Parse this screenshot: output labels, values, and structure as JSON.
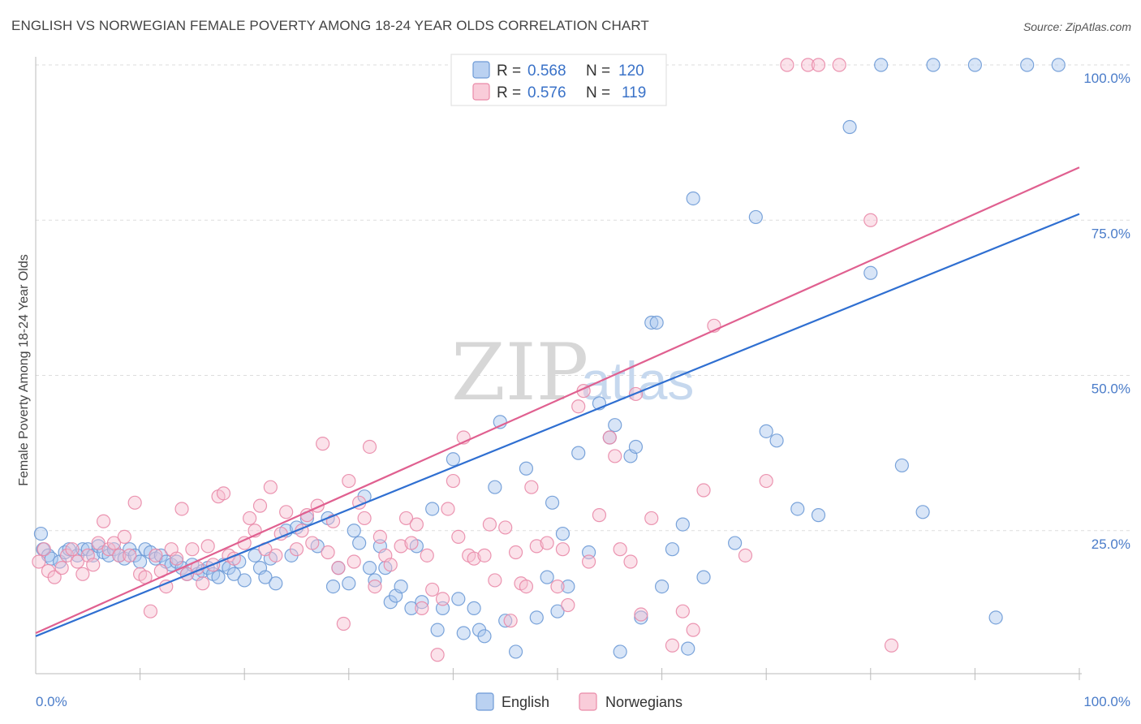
{
  "title": "ENGLISH VS NORWEGIAN FEMALE POVERTY AMONG 18-24 YEAR OLDS CORRELATION CHART",
  "source": "Source: ZipAtlas.com",
  "watermark": {
    "zip": "ZIP",
    "atlas": "atlas"
  },
  "colors": {
    "english_fill": "#a9c6ee",
    "english_stroke": "#6d9ad6",
    "english_line": "#2f6fd1",
    "norwegian_fill": "#f7bfd0",
    "norwegian_stroke": "#e98aa8",
    "norwegian_line": "#e06090",
    "grid": "#dddddd",
    "tick_text": "#4a7cc9"
  },
  "legend_top": {
    "rows": [
      {
        "r_label": "R =",
        "r_value": "0.568",
        "n_label": "N =",
        "n_value": "120"
      },
      {
        "r_label": "R =",
        "r_value": "0.576",
        "n_label": "N =",
        "n_value": "119"
      }
    ]
  },
  "legend_bottom": {
    "english": "English",
    "norwegians": "Norwegians"
  },
  "chart_data": {
    "type": "scatter",
    "title": "ENGLISH VS NORWEGIAN FEMALE POVERTY AMONG 18-24 YEAR OLDS CORRELATION CHART",
    "xlabel": "",
    "ylabel": "Female Poverty Among 18-24 Year Olds",
    "xlim": [
      0,
      100
    ],
    "ylim": [
      0,
      100
    ],
    "x_tick_labels": [
      "0.0%",
      "100.0%"
    ],
    "y_tick_labels": [
      "25.0%",
      "50.0%",
      "75.0%",
      "100.0%"
    ],
    "y_ticks": [
      25,
      50,
      75,
      100
    ],
    "grid": true,
    "legend_position": "top-center",
    "series": [
      {
        "name": "English",
        "R": 0.568,
        "N": 120,
        "trend": {
          "x": [
            0,
            100
          ],
          "y": [
            8,
            76
          ]
        },
        "points": [
          [
            0.5,
            24.5
          ],
          [
            0.7,
            22
          ],
          [
            1.2,
            21
          ],
          [
            1.5,
            20.5
          ],
          [
            2.3,
            20
          ],
          [
            2.8,
            21.5
          ],
          [
            3.2,
            22
          ],
          [
            4,
            21
          ],
          [
            4.5,
            22
          ],
          [
            5,
            22
          ],
          [
            5.5,
            21
          ],
          [
            6,
            22.5
          ],
          [
            6.5,
            21.5
          ],
          [
            7,
            21
          ],
          [
            7.5,
            22
          ],
          [
            8,
            21
          ],
          [
            8.5,
            20.5
          ],
          [
            9,
            22
          ],
          [
            9.5,
            21
          ],
          [
            10,
            20
          ],
          [
            10.5,
            22
          ],
          [
            11,
            21.5
          ],
          [
            11.5,
            20.5
          ],
          [
            12,
            21
          ],
          [
            12.5,
            20
          ],
          [
            13,
            19.5
          ],
          [
            13.5,
            20
          ],
          [
            14,
            19
          ],
          [
            14.5,
            18
          ],
          [
            15,
            19.5
          ],
          [
            15.5,
            18
          ],
          [
            16,
            18.5
          ],
          [
            16.5,
            19
          ],
          [
            17,
            18
          ],
          [
            17.5,
            17.5
          ],
          [
            18,
            19.5
          ],
          [
            18.5,
            19
          ],
          [
            19,
            18
          ],
          [
            19.5,
            20
          ],
          [
            20,
            17
          ],
          [
            21,
            21
          ],
          [
            21.5,
            19
          ],
          [
            22,
            17.5
          ],
          [
            22.5,
            20.5
          ],
          [
            23,
            16.5
          ],
          [
            24,
            25
          ],
          [
            24.5,
            21
          ],
          [
            25,
            25.5
          ],
          [
            26,
            27
          ],
          [
            27,
            22.5
          ],
          [
            28,
            27
          ],
          [
            28.5,
            16
          ],
          [
            29,
            19
          ],
          [
            30,
            16.5
          ],
          [
            30.5,
            25
          ],
          [
            31,
            23
          ],
          [
            31.5,
            30.5
          ],
          [
            32,
            19
          ],
          [
            32.5,
            17
          ],
          [
            33,
            22.5
          ],
          [
            33.5,
            19
          ],
          [
            34,
            13.5
          ],
          [
            34.5,
            14.5
          ],
          [
            35,
            16
          ],
          [
            36,
            12.5
          ],
          [
            36.5,
            22.5
          ],
          [
            37,
            13.5
          ],
          [
            38,
            28.5
          ],
          [
            38.5,
            9
          ],
          [
            39,
            12.5
          ],
          [
            40,
            36.5
          ],
          [
            40.5,
            14
          ],
          [
            41,
            8.5
          ],
          [
            42,
            12.5
          ],
          [
            42.5,
            9
          ],
          [
            43,
            8
          ],
          [
            44,
            32
          ],
          [
            44.5,
            42.5
          ],
          [
            45,
            10.5
          ],
          [
            46,
            5.5
          ],
          [
            47,
            35
          ],
          [
            48,
            11
          ],
          [
            49,
            17.5
          ],
          [
            49.5,
            29.5
          ],
          [
            50,
            12
          ],
          [
            50.5,
            24.5
          ],
          [
            51,
            16
          ],
          [
            52,
            37.5
          ],
          [
            53,
            21.5
          ],
          [
            54,
            45.5
          ],
          [
            55,
            40
          ],
          [
            55.5,
            42
          ],
          [
            56,
            5.5
          ],
          [
            57,
            37
          ],
          [
            57.5,
            38.5
          ],
          [
            58,
            11
          ],
          [
            59,
            58.5
          ],
          [
            59.5,
            58.5
          ],
          [
            60,
            16
          ],
          [
            61,
            22
          ],
          [
            62,
            26
          ],
          [
            62.5,
            6
          ],
          [
            63,
            78.5
          ],
          [
            64,
            17.5
          ],
          [
            67,
            23
          ],
          [
            69,
            75.5
          ],
          [
            70,
            41
          ],
          [
            71,
            39.5
          ],
          [
            73,
            28.5
          ],
          [
            75,
            27.5
          ],
          [
            78,
            90
          ],
          [
            80,
            66.5
          ],
          [
            81,
            100
          ],
          [
            83,
            35.5
          ],
          [
            85,
            28
          ],
          [
            86,
            100
          ],
          [
            90,
            100
          ],
          [
            92,
            11
          ],
          [
            95,
            100
          ],
          [
            98,
            100
          ]
        ]
      },
      {
        "name": "Norwegians",
        "R": 0.576,
        "N": 119,
        "trend": {
          "x": [
            0,
            100
          ],
          "y": [
            8.5,
            83.5
          ]
        },
        "points": [
          [
            0.3,
            20
          ],
          [
            0.8,
            22
          ],
          [
            1.2,
            18.5
          ],
          [
            1.8,
            17.5
          ],
          [
            2.5,
            19
          ],
          [
            3,
            21
          ],
          [
            3.5,
            22
          ],
          [
            4,
            20
          ],
          [
            4.5,
            18
          ],
          [
            5,
            21
          ],
          [
            5.5,
            19.5
          ],
          [
            6,
            23
          ],
          [
            6.5,
            26.5
          ],
          [
            7,
            22
          ],
          [
            7.5,
            23
          ],
          [
            8,
            21
          ],
          [
            8.5,
            24
          ],
          [
            9,
            21
          ],
          [
            9.5,
            29.5
          ],
          [
            10,
            18
          ],
          [
            10.5,
            17.5
          ],
          [
            11,
            12
          ],
          [
            11.5,
            21
          ],
          [
            12,
            18.5
          ],
          [
            12.5,
            16
          ],
          [
            13,
            22
          ],
          [
            13.5,
            20.5
          ],
          [
            14,
            28.5
          ],
          [
            14.5,
            18
          ],
          [
            15,
            22
          ],
          [
            15.5,
            19
          ],
          [
            16,
            16.5
          ],
          [
            16.5,
            22.5
          ],
          [
            17,
            19.5
          ],
          [
            17.5,
            30.5
          ],
          [
            18,
            31
          ],
          [
            18.5,
            21
          ],
          [
            19,
            20.5
          ],
          [
            20,
            23
          ],
          [
            20.5,
            27
          ],
          [
            21,
            25
          ],
          [
            21.5,
            29
          ],
          [
            22,
            22
          ],
          [
            22.5,
            32
          ],
          [
            23,
            21
          ],
          [
            23.5,
            24.5
          ],
          [
            24,
            28
          ],
          [
            25,
            22
          ],
          [
            25.5,
            25
          ],
          [
            26,
            27.5
          ],
          [
            26.5,
            23
          ],
          [
            27,
            29
          ],
          [
            27.5,
            39
          ],
          [
            28,
            21.5
          ],
          [
            28.5,
            26.5
          ],
          [
            29,
            19
          ],
          [
            29.5,
            10
          ],
          [
            30,
            33
          ],
          [
            30.5,
            20
          ],
          [
            31,
            29.5
          ],
          [
            31.5,
            27
          ],
          [
            32,
            38.5
          ],
          [
            32.5,
            16
          ],
          [
            33,
            24
          ],
          [
            33.5,
            21
          ],
          [
            34,
            19.5
          ],
          [
            35,
            22.5
          ],
          [
            35.5,
            27
          ],
          [
            36,
            23
          ],
          [
            36.5,
            26
          ],
          [
            37,
            12.5
          ],
          [
            37.5,
            21
          ],
          [
            38,
            15.5
          ],
          [
            38.5,
            5
          ],
          [
            39,
            14
          ],
          [
            39.5,
            28.5
          ],
          [
            40,
            33
          ],
          [
            40.5,
            24
          ],
          [
            41,
            40
          ],
          [
            41.5,
            21
          ],
          [
            42,
            20.5
          ],
          [
            43,
            21
          ],
          [
            43.5,
            26
          ],
          [
            44,
            17
          ],
          [
            45,
            25.5
          ],
          [
            45.5,
            10.5
          ],
          [
            46,
            21.5
          ],
          [
            46.5,
            16.5
          ],
          [
            47,
            16
          ],
          [
            47.5,
            32
          ],
          [
            48,
            22.5
          ],
          [
            49,
            23
          ],
          [
            50,
            16
          ],
          [
            50.5,
            22
          ],
          [
            51,
            13
          ],
          [
            52,
            45
          ],
          [
            52.5,
            47.5
          ],
          [
            53,
            20
          ],
          [
            54,
            27.5
          ],
          [
            55,
            40
          ],
          [
            55.5,
            37
          ],
          [
            56,
            22
          ],
          [
            57,
            20
          ],
          [
            57.5,
            47
          ],
          [
            58,
            11.5
          ],
          [
            59,
            27
          ],
          [
            61,
            6.5
          ],
          [
            62,
            12
          ],
          [
            63,
            9
          ],
          [
            64,
            31.5
          ],
          [
            65,
            58
          ],
          [
            68,
            21
          ],
          [
            70,
            33
          ],
          [
            72,
            100
          ],
          [
            74,
            100
          ],
          [
            75,
            100
          ],
          [
            77,
            100
          ],
          [
            80,
            75
          ],
          [
            82,
            6.5
          ]
        ]
      }
    ]
  }
}
